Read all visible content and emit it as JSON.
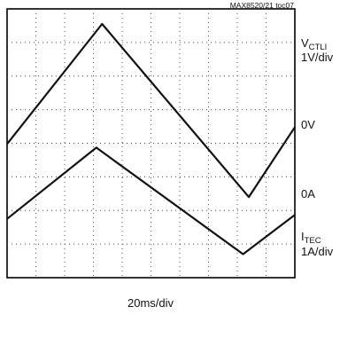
{
  "chart_data": {
    "type": "line",
    "annotation_top": "MAX8520/21 toc07",
    "xlabel": "20ms/div",
    "x_divisions": 10,
    "y_divisions": 8,
    "channel1": {
      "name_main": "V",
      "name_sub": "CTLI",
      "scale": "1V/div",
      "zero_label": "0V"
    },
    "channel2": {
      "name_main": "I",
      "name_sub": "TEC",
      "scale": "1A/div",
      "zero_label": "0A"
    },
    "series": [
      {
        "name": "V CTLI",
        "unit": "V",
        "x_ms": [
          0,
          33,
          84,
          100
        ],
        "y": [
          0.23,
          3.8,
          -1.35,
          0.73
        ]
      },
      {
        "name": "I TEC",
        "unit": "A",
        "x_ms": [
          0,
          31,
          82,
          100
        ],
        "y": [
          -0.05,
          2.07,
          -1.1,
          0.07
        ]
      }
    ]
  }
}
